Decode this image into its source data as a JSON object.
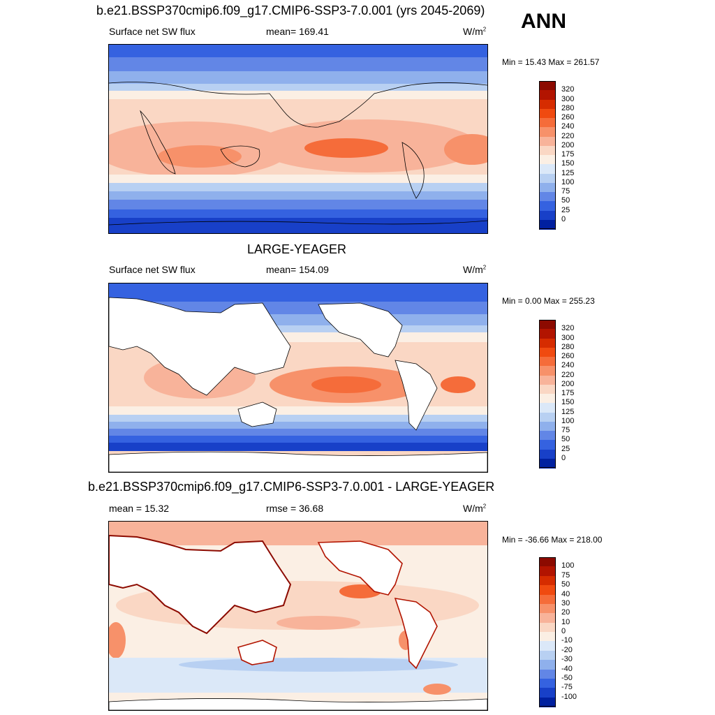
{
  "header": {
    "title": "b.e21.BSSP370cmip6.f09_g17.CMIP6-SSP3-7.0.001 (yrs 2045-2069)",
    "season": "ANN"
  },
  "panel1": {
    "var_label": "Surface net SW flux",
    "stat_label": "mean= 169.41",
    "units": "W/m",
    "units_sup": "2",
    "minmax": "Min =  15.43 Max = 261.57"
  },
  "panel2": {
    "title": "LARGE-YEAGER",
    "var_label": "Surface net SW flux",
    "stat_label": "mean= 154.09",
    "units": "W/m",
    "units_sup": "2",
    "minmax": "Min =   0.00 Max = 255.23"
  },
  "panel3": {
    "title": "b.e21.BSSP370cmip6.f09_g17.CMIP6-SSP3-7.0.001 - LARGE-YEAGER",
    "mean_label": "mean =  15.32",
    "rmse_label": "rmse =  36.68",
    "units": "W/m",
    "units_sup": "2",
    "minmax": "Min = -36.66 Max = 218.00"
  },
  "colorbars": {
    "abs": {
      "labels": [
        "320",
        "300",
        "280",
        "260",
        "240",
        "220",
        "200",
        "175",
        "150",
        "125",
        "100",
        "75",
        "50",
        "25",
        "0"
      ],
      "colors": [
        "#8c0a00",
        "#b21400",
        "#d62c00",
        "#f04a10",
        "#f56c3a",
        "#f7916a",
        "#f8b39a",
        "#fad7c4",
        "#fbefe4",
        "#dbe8f8",
        "#b8d0f2",
        "#8fb0ec",
        "#6286e6",
        "#3562e0",
        "#1840c8",
        "#0020a0"
      ]
    },
    "diff": {
      "labels": [
        "100",
        "75",
        "50",
        "40",
        "30",
        "20",
        "10",
        "0",
        "-10",
        "-20",
        "-30",
        "-40",
        "-50",
        "-75",
        "-100"
      ],
      "colors": [
        "#8c0a00",
        "#b21400",
        "#d62c00",
        "#f04a10",
        "#f56c3a",
        "#f7916a",
        "#f8b39a",
        "#fad7c4",
        "#fbefe4",
        "#dbe8f8",
        "#b8d0f2",
        "#8fb0ec",
        "#6286e6",
        "#3562e0",
        "#1840c8",
        "#0020a0"
      ]
    }
  },
  "chart_data": [
    {
      "type": "heatmap",
      "title": "b.e21.BSSP370cmip6.f09_g17.CMIP6-SSP3-7.0.001 (yrs 2045-2069)",
      "variable": "Surface net SW flux",
      "units": "W/m2",
      "mean": 169.41,
      "min": 15.43,
      "max": 261.57,
      "contour_levels": [
        0,
        25,
        50,
        75,
        100,
        125,
        150,
        175,
        200,
        220,
        240,
        260,
        280,
        300,
        320
      ]
    },
    {
      "type": "heatmap",
      "title": "LARGE-YEAGER",
      "variable": "Surface net SW flux",
      "units": "W/m2",
      "mean": 154.09,
      "min": 0.0,
      "max": 255.23,
      "contour_levels": [
        0,
        25,
        50,
        75,
        100,
        125,
        150,
        175,
        200,
        220,
        240,
        260,
        280,
        300,
        320
      ]
    },
    {
      "type": "heatmap",
      "title": "b.e21.BSSP370cmip6.f09_g17.CMIP6-SSP3-7.0.001 - LARGE-YEAGER",
      "units": "W/m2",
      "mean": 15.32,
      "rmse": 36.68,
      "min": -36.66,
      "max": 218.0,
      "contour_levels": [
        -100,
        -75,
        -50,
        -40,
        -30,
        -20,
        -10,
        0,
        10,
        20,
        30,
        40,
        50,
        75,
        100
      ]
    }
  ]
}
